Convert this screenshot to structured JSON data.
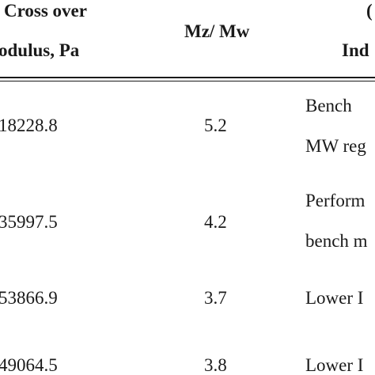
{
  "header": {
    "col1_line1": "Cross over",
    "col1_line2": "odulus, Pa",
    "col2": "Mz/ Mw",
    "col3_line1": "(",
    "col3_line2": "Ind"
  },
  "rows": [
    {
      "modulus": "18228.8",
      "ratio": "5.2",
      "note_line1": "Bench",
      "note_line2": "MW reg"
    },
    {
      "modulus": "35997.5",
      "ratio": "4.2",
      "note_line1": "Perform",
      "note_line2": "bench m"
    },
    {
      "modulus": "53866.9",
      "ratio": "3.7",
      "note_line1": "Lower I",
      "note_line2": ""
    },
    {
      "modulus": "49064.5",
      "ratio": "3.8",
      "note_line1": "Lower I",
      "note_line2": ""
    }
  ]
}
